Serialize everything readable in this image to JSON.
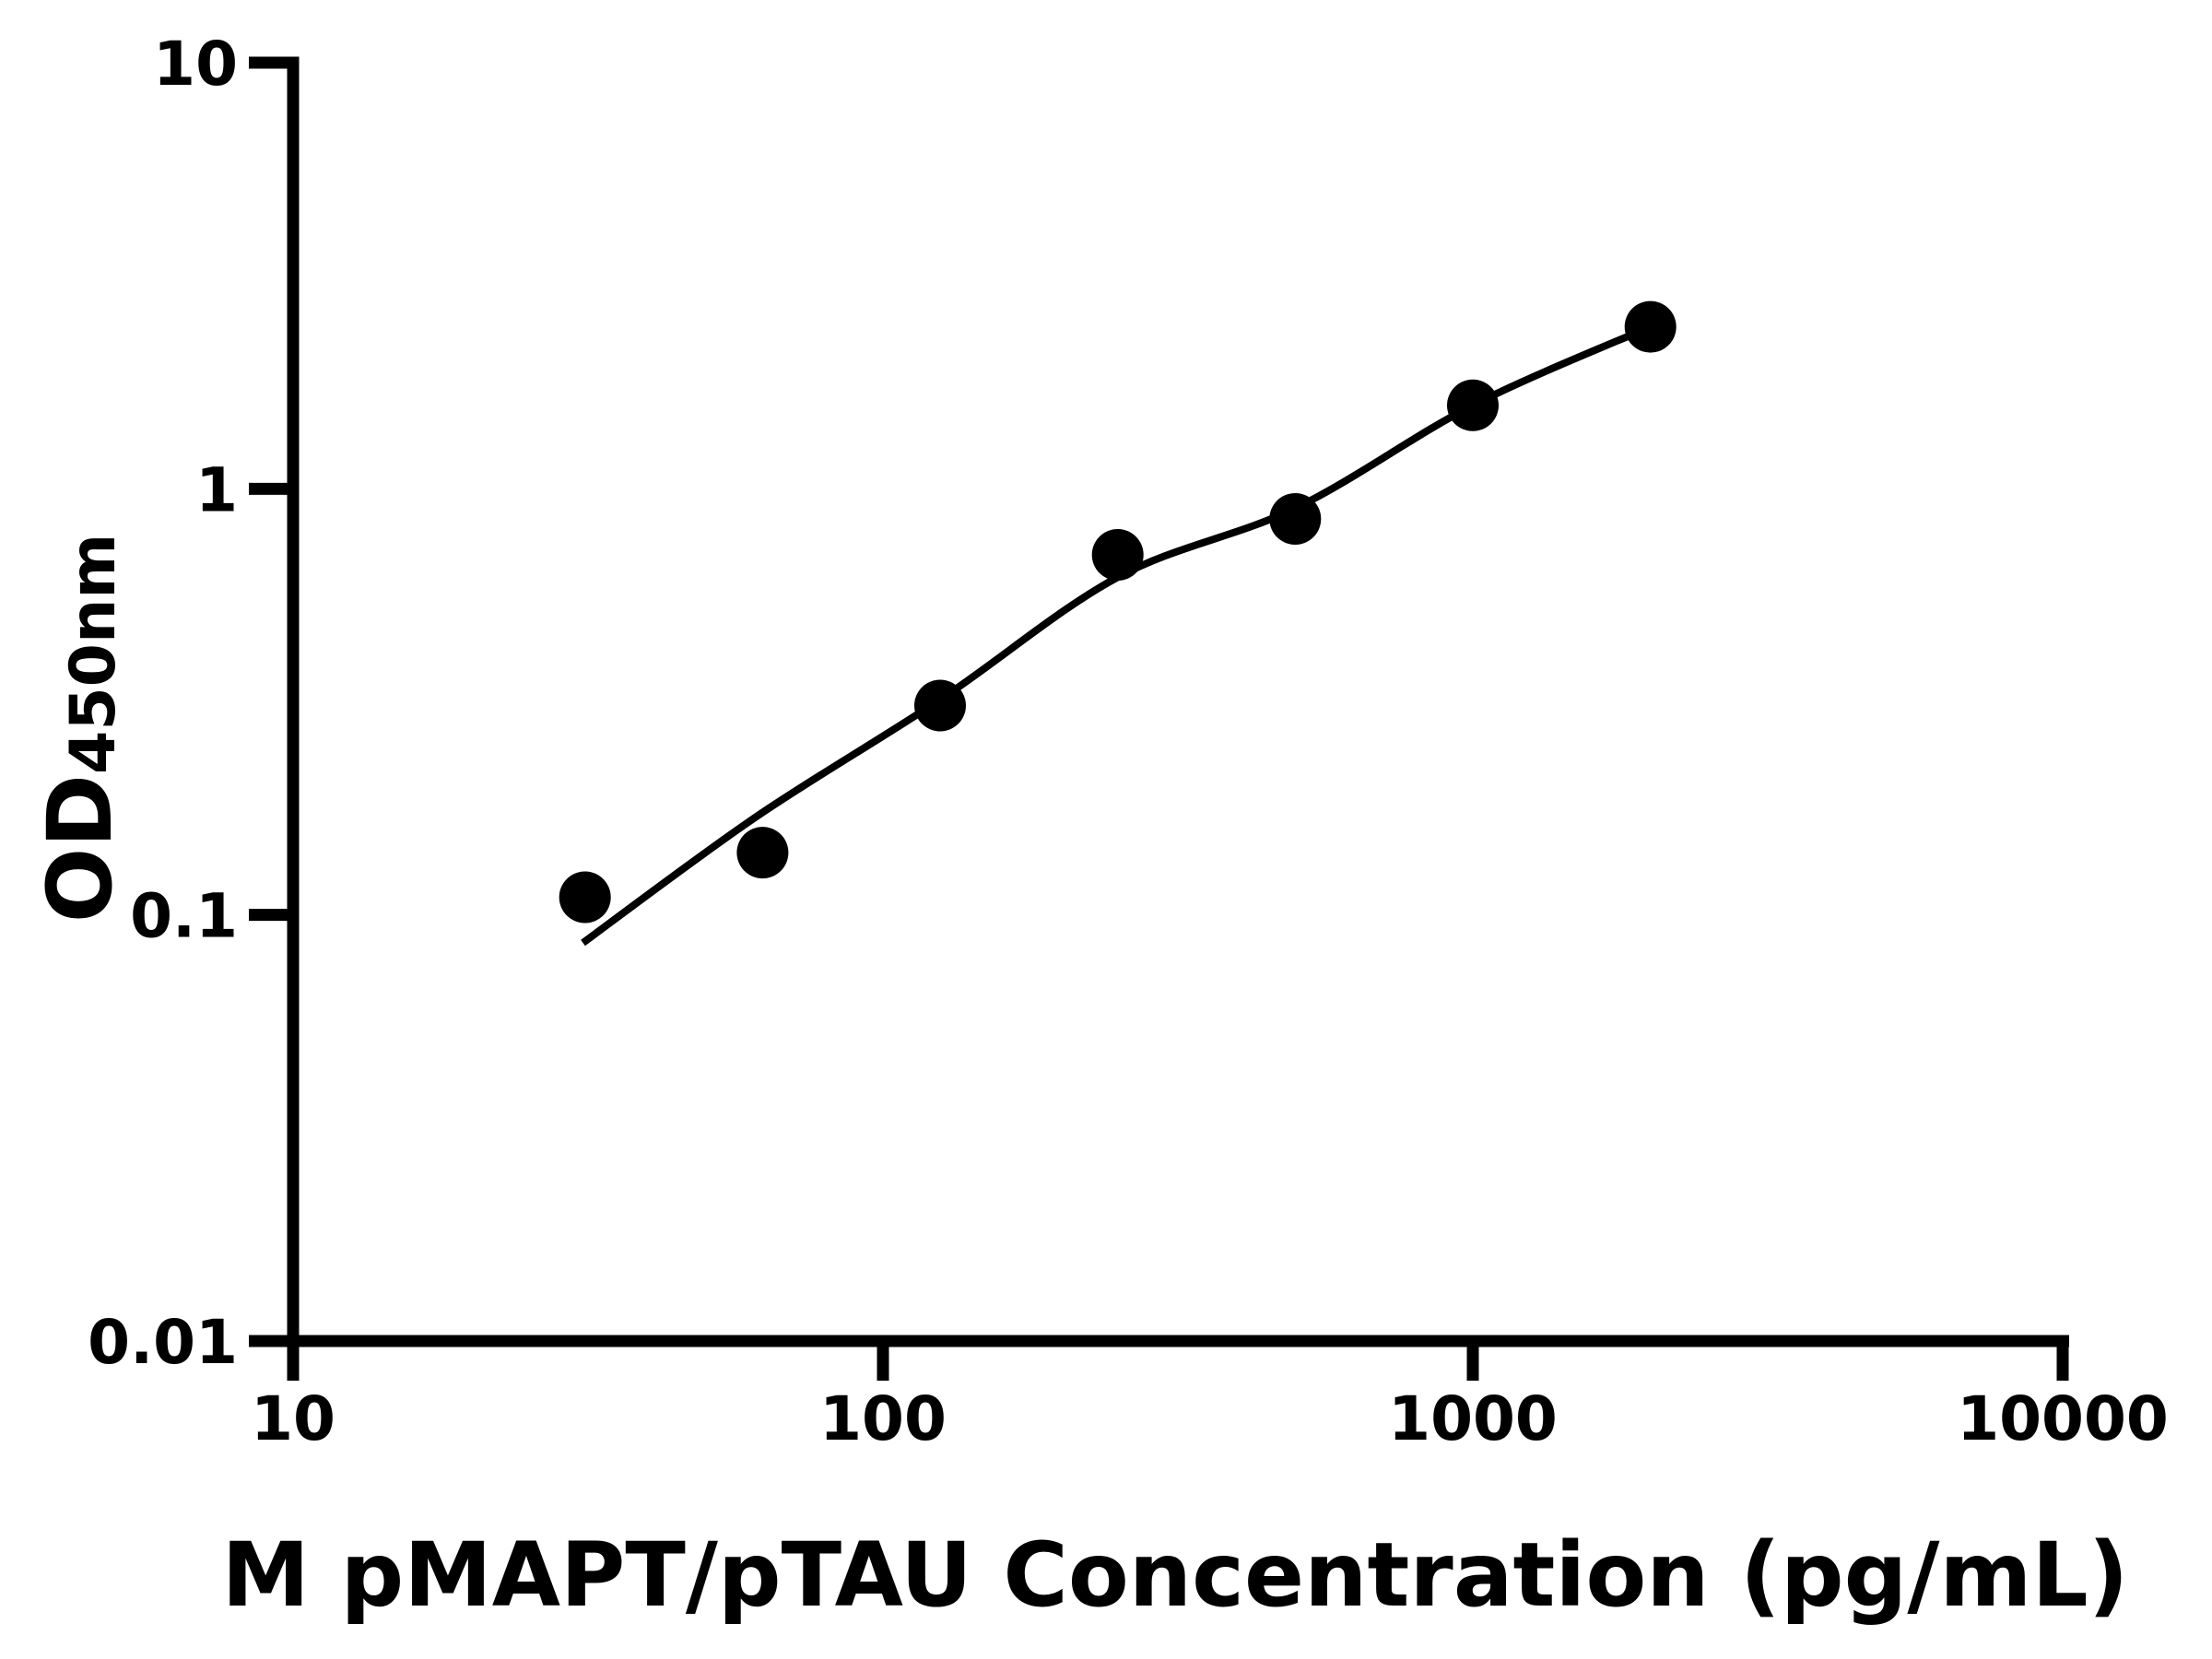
{
  "figure": {
    "background_color": "#ffffff",
    "foreground_color": "#000000"
  },
  "chart_data": {
    "type": "scatter",
    "title": "",
    "xlabel": "M pMAPT/pTAU Concentration (pg/mL)",
    "ylabel": "OD450nm",
    "ylabel_parts": {
      "main": "OD",
      "sub": "450nm"
    },
    "x_scale": "log",
    "y_scale": "log",
    "xlim": [
      10,
      10000
    ],
    "ylim": [
      0.01,
      10
    ],
    "grid": false,
    "legend": null,
    "x_ticks": [
      {
        "value": 10,
        "label": "10"
      },
      {
        "value": 100,
        "label": "100"
      },
      {
        "value": 1000,
        "label": "1000"
      },
      {
        "value": 10000,
        "label": "10000"
      }
    ],
    "y_ticks": [
      {
        "value": 10,
        "label": "10"
      },
      {
        "value": 1,
        "label": "1"
      },
      {
        "value": 0.1,
        "label": "0.1"
      },
      {
        "value": 0.01,
        "label": "0.01"
      }
    ],
    "series": [
      {
        "name": "standard-points",
        "type": "scatter",
        "marker": "circle",
        "color": "#000000",
        "points": [
          {
            "x": 31.25,
            "y": 0.11
          },
          {
            "x": 62.5,
            "y": 0.14
          },
          {
            "x": 125,
            "y": 0.31
          },
          {
            "x": 250,
            "y": 0.7
          },
          {
            "x": 500,
            "y": 0.85
          },
          {
            "x": 1000,
            "y": 1.57
          },
          {
            "x": 2000,
            "y": 2.4
          }
        ]
      },
      {
        "name": "fit-curve",
        "type": "line",
        "color": "#000000",
        "points": [
          {
            "x": 31,
            "y": 0.086
          },
          {
            "x": 61,
            "y": 0.17
          },
          {
            "x": 125,
            "y": 0.32
          },
          {
            "x": 250,
            "y": 0.62
          },
          {
            "x": 500,
            "y": 0.9
          },
          {
            "x": 1000,
            "y": 1.57
          },
          {
            "x": 2000,
            "y": 2.4
          }
        ]
      }
    ]
  }
}
